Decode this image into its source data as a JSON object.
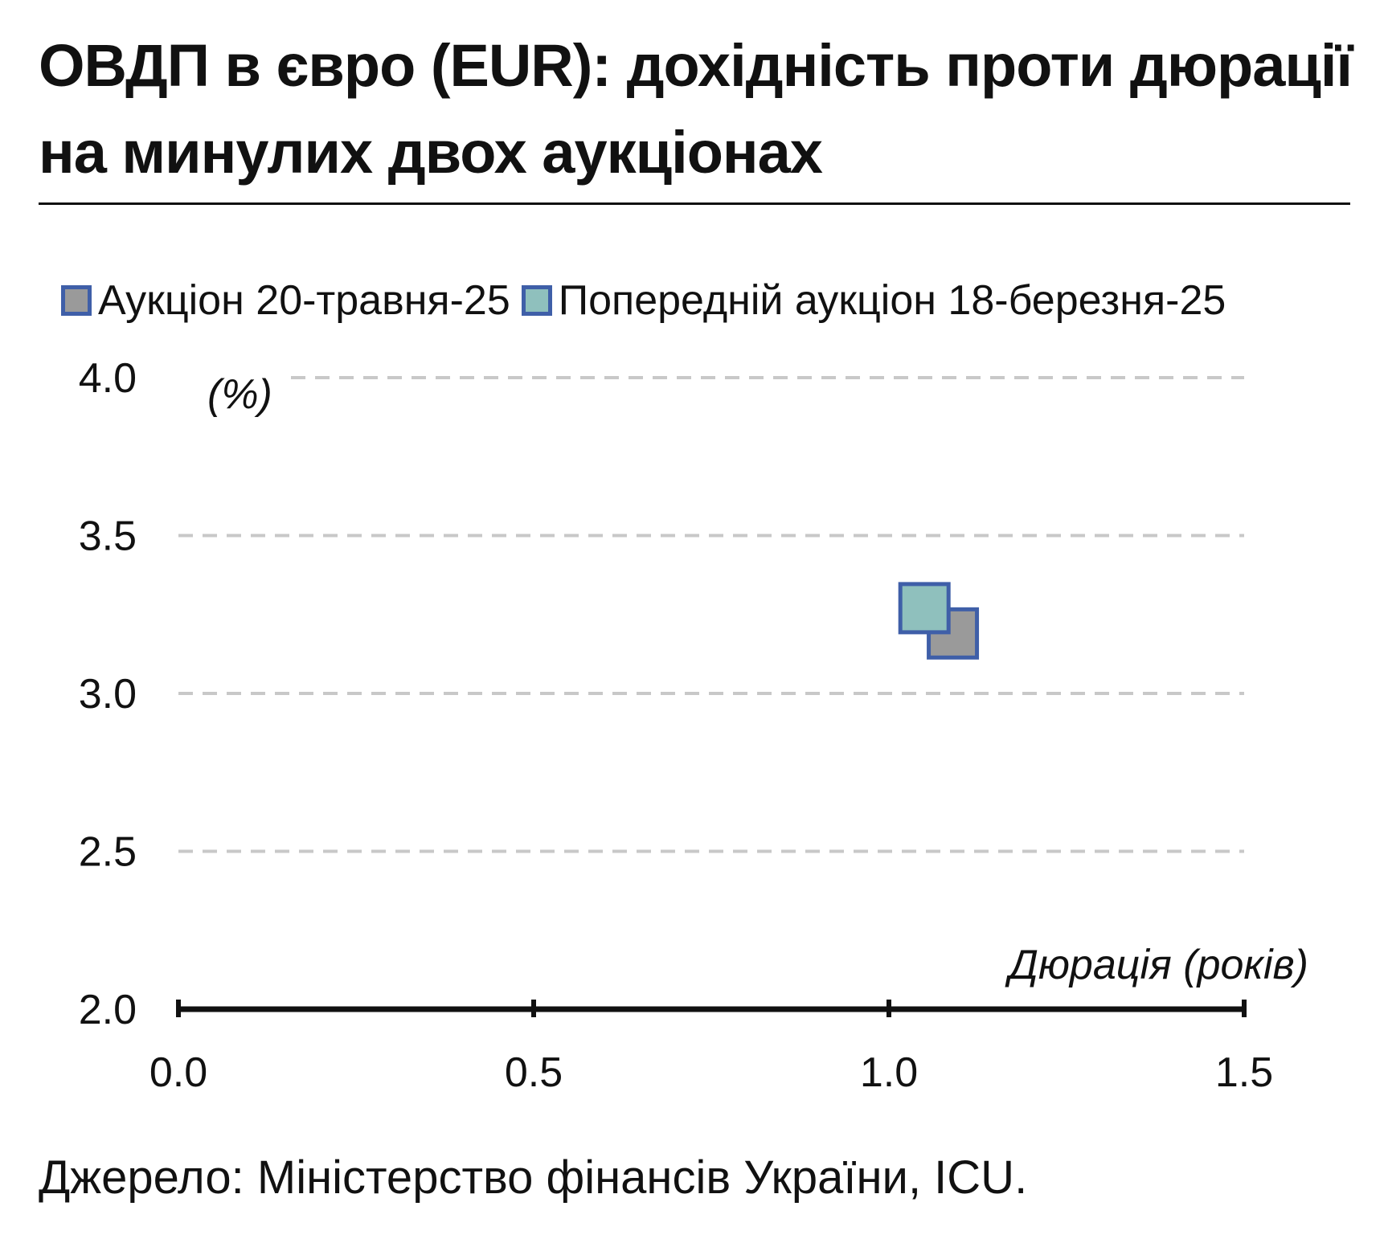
{
  "header": {
    "title_line1": "ОВДП в євро (EUR): дохідність проти дюрації",
    "title_line2": "на минулих двох аукціонах"
  },
  "footer": {
    "source": "Джерело: Міністерство фінансів України, ICU."
  },
  "colors": {
    "series_current": "#9a9a9a",
    "series_previous": "#8fc0bd",
    "marker_border": "#3f5fa8",
    "grid": "#c8c8c8",
    "axis": "#111111"
  },
  "chart_data": {
    "type": "scatter",
    "xlabel": "Дюрація (років)",
    "ylabel": "(%)",
    "xlim": [
      0.0,
      1.5
    ],
    "ylim": [
      2.0,
      4.0
    ],
    "x_ticks": [
      "0.0",
      "0.5",
      "1.0",
      "1.5"
    ],
    "y_ticks": [
      "4.0",
      "3.5",
      "3.0",
      "2.5",
      "2.0"
    ],
    "grid": "horizontal dashed",
    "legend_position": "top",
    "series": [
      {
        "name": "Аукціон 20-травня-25",
        "marker": "square",
        "points": [
          {
            "x": 1.09,
            "y": 3.19
          }
        ]
      },
      {
        "name": "Попередній аукціон 18-березня-25",
        "marker": "square",
        "points": [
          {
            "x": 1.05,
            "y": 3.27
          }
        ]
      }
    ]
  }
}
